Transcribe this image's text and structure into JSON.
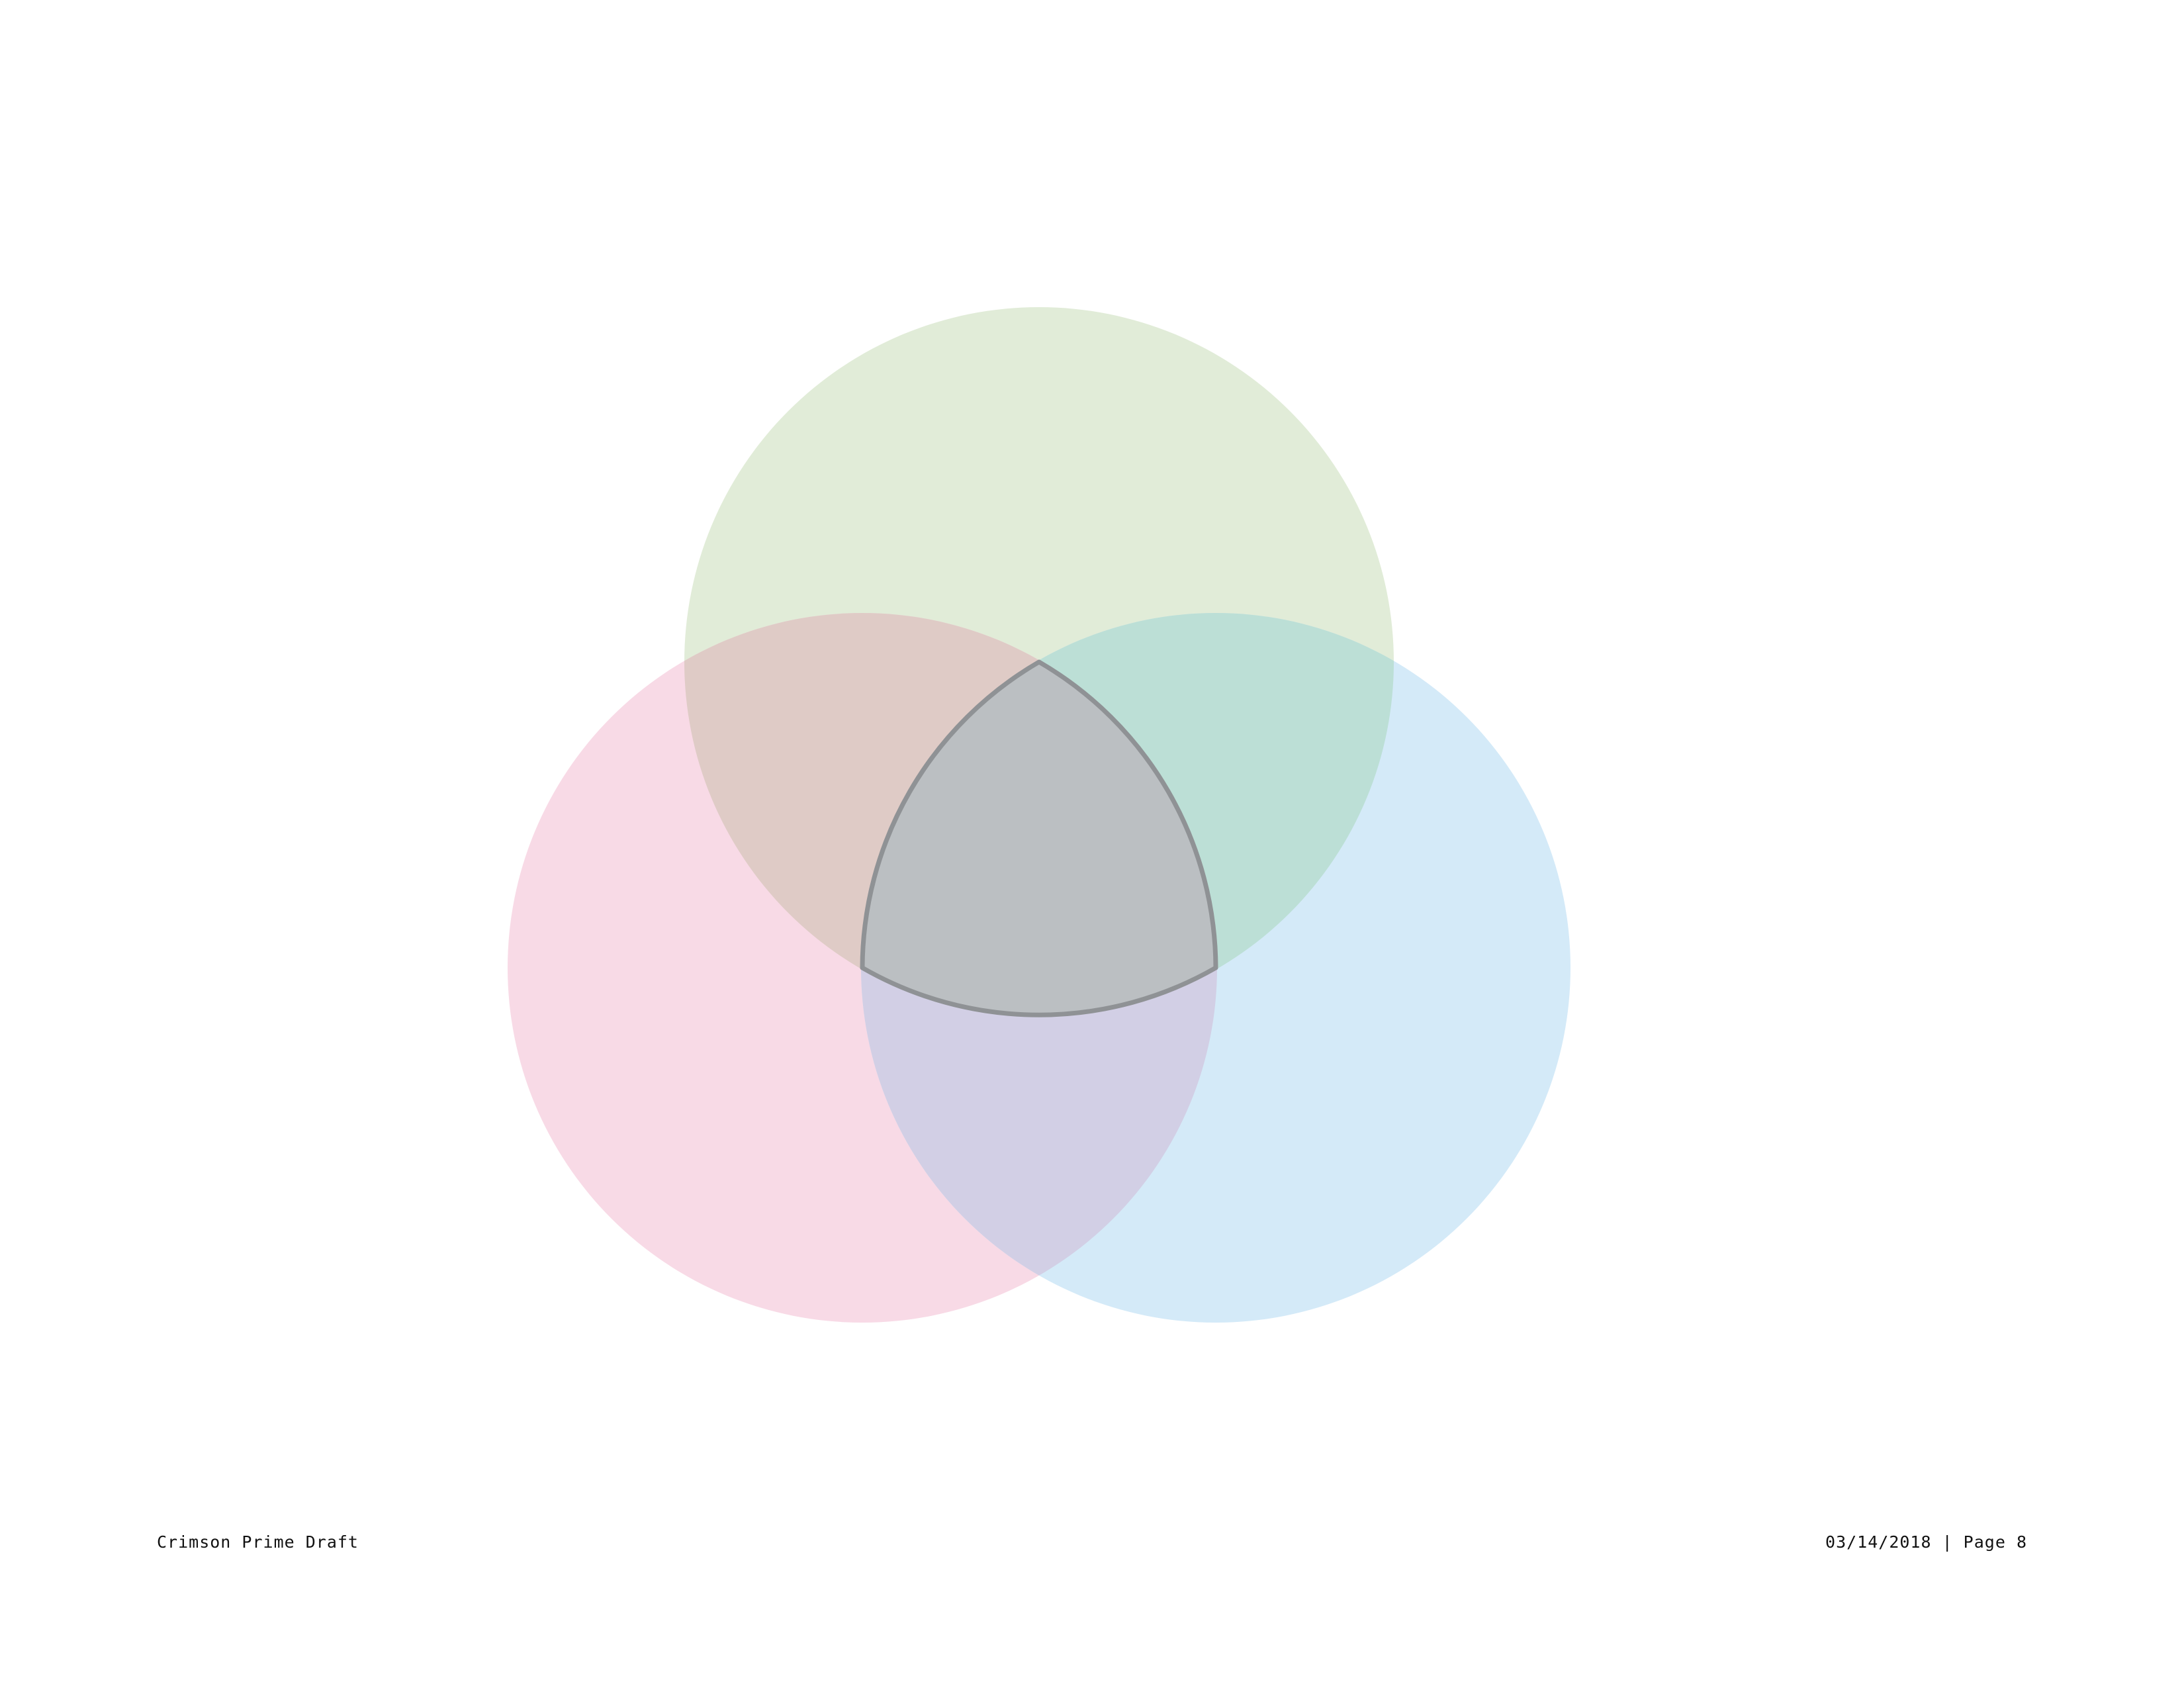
{
  "document": {
    "footer_left": "Crimson Prime Draft",
    "footer_right": "03/14/2018 | Page 8"
  },
  "diagram": {
    "type": "venn",
    "sets": [
      {
        "id": "top",
        "color": "#e1ecd8"
      },
      {
        "id": "left",
        "color": "#f8dae6"
      },
      {
        "id": "right",
        "color": "#d4eaf8"
      }
    ],
    "overlap_colors": {
      "top-left": "#dfcbc6",
      "top-right": "#bcdfd6",
      "left-right": "#d2cfe5",
      "all": "#bbbfc2"
    },
    "outline_color": "#8f9295"
  }
}
